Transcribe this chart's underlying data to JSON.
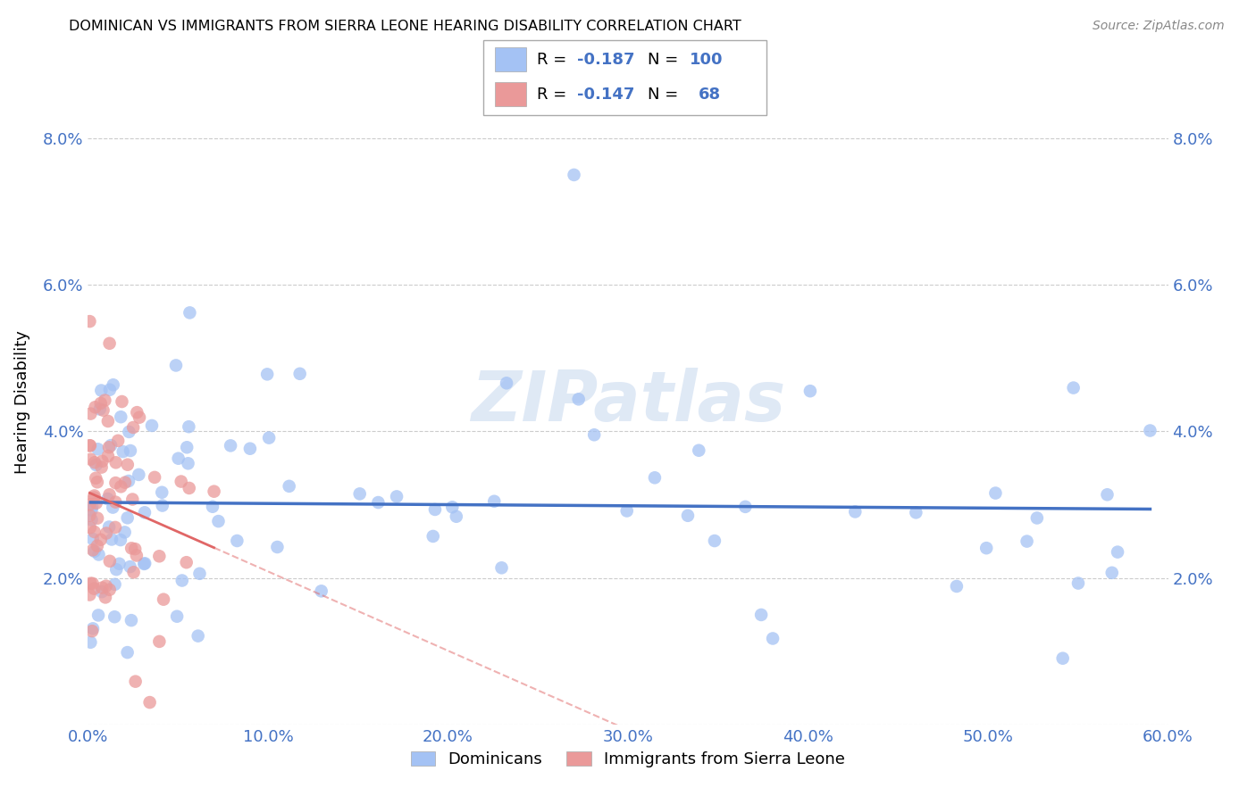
{
  "title": "DOMINICAN VS IMMIGRANTS FROM SIERRA LEONE HEARING DISABILITY CORRELATION CHART",
  "source": "Source: ZipAtlas.com",
  "ylabel": "Hearing Disability",
  "legend1_label": "Dominicans",
  "legend2_label": "Immigrants from Sierra Leone",
  "r1": "-0.187",
  "n1": "100",
  "r2": "-0.147",
  "n2": "68",
  "color_blue": "#a4c2f4",
  "color_pink": "#ea9999",
  "color_blue_text": "#4472c4",
  "trend_blue": "#4472c4",
  "trend_pink": "#e06666",
  "watermark": "ZIPatlas",
  "xlim": [
    0.0,
    0.6
  ],
  "ylim": [
    0.0,
    0.088
  ],
  "xticks": [
    0.0,
    0.1,
    0.2,
    0.3,
    0.4,
    0.5,
    0.6
  ],
  "yticks": [
    0.0,
    0.02,
    0.04,
    0.06,
    0.08
  ],
  "blue_seed": 77,
  "pink_seed": 99
}
